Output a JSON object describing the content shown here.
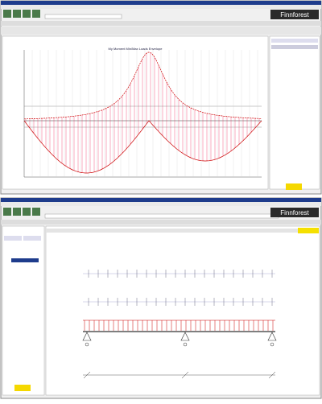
{
  "windows": [
    {
      "logo": "Finnforest",
      "chart_title": "My Moment Min/Max Loads Envelope"
    },
    {
      "logo": "Finnforest"
    }
  ]
}
